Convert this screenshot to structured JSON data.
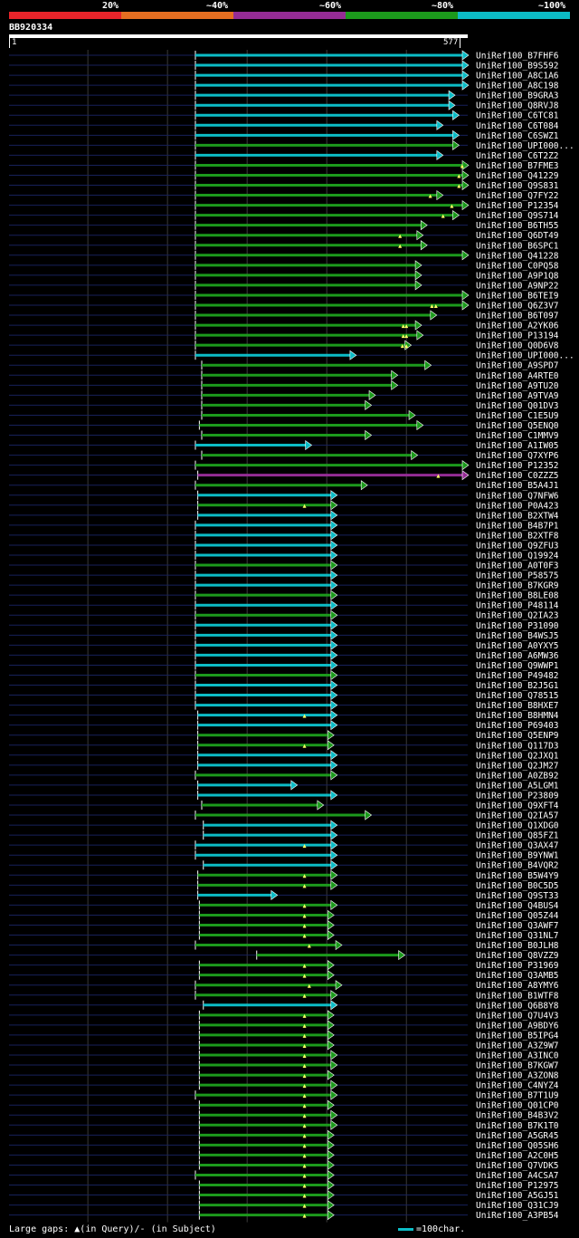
{
  "chart_data": {
    "type": "alignment-overview",
    "query": {
      "name": "BB920334",
      "length": 577,
      "start_label": "1",
      "end_label": "577"
    },
    "scale": [
      {
        "label": "20%",
        "color": "#e8242a"
      },
      {
        "label": "~40%",
        "color": "#e76f21"
      },
      {
        "label": "~60%",
        "color": "#952c95"
      },
      {
        "label": "~80%",
        "color": "#1c9a1c"
      },
      {
        "label": "~100%",
        "color": "#0cbcc6"
      }
    ],
    "identity_colors": {
      "100": "#0cbcc6",
      "80": "#1c9a1c",
      "60": "#952c95"
    },
    "hits": [
      {
        "label": "UniRef100_B7FHF6",
        "start": 235,
        "end": 577,
        "identity": 100,
        "gaps": []
      },
      {
        "label": "UniRef100_B9S592",
        "start": 235,
        "end": 577,
        "identity": 100,
        "gaps": []
      },
      {
        "label": "UniRef100_A8C1A6",
        "start": 235,
        "end": 577,
        "identity": 100,
        "gaps": []
      },
      {
        "label": "UniRef100_A8C198",
        "start": 235,
        "end": 577,
        "identity": 100,
        "gaps": []
      },
      {
        "label": "UniRef100_B9GRA3",
        "start": 235,
        "end": 560,
        "identity": 100,
        "gaps": []
      },
      {
        "label": "UniRef100_Q8RVJ8",
        "start": 235,
        "end": 560,
        "identity": 100,
        "gaps": []
      },
      {
        "label": "UniRef100_C6TC81",
        "start": 235,
        "end": 565,
        "identity": 100,
        "gaps": []
      },
      {
        "label": "UniRef100_C6T084",
        "start": 235,
        "end": 545,
        "identity": 100,
        "gaps": []
      },
      {
        "label": "UniRef100_C6SWZ1",
        "start": 235,
        "end": 565,
        "identity": 100,
        "gaps": []
      },
      {
        "label": "UniRef100_UPI000...",
        "start": 235,
        "end": 565,
        "identity": 80,
        "gaps": []
      },
      {
        "label": "UniRef100_C6T2Z2",
        "start": 235,
        "end": 545,
        "identity": 100,
        "gaps": []
      },
      {
        "label": "UniRef100_B7FME3",
        "start": 235,
        "end": 577,
        "identity": 80,
        "gaps": [
          570
        ]
      },
      {
        "label": "UniRef100_Q41229",
        "start": 235,
        "end": 577,
        "identity": 80,
        "gaps": [
          566
        ]
      },
      {
        "label": "UniRef100_Q9S831",
        "start": 235,
        "end": 577,
        "identity": 80,
        "gaps": [
          566
        ]
      },
      {
        "label": "UniRef100_Q7FY22",
        "start": 235,
        "end": 545,
        "identity": 80,
        "gaps": [
          530
        ]
      },
      {
        "label": "UniRef100_P12354",
        "start": 235,
        "end": 577,
        "identity": 80,
        "gaps": [
          557
        ]
      },
      {
        "label": "UniRef100_Q9S714",
        "start": 235,
        "end": 565,
        "identity": 80,
        "gaps": [
          546
        ]
      },
      {
        "label": "UniRef100_B6TH55",
        "start": 235,
        "end": 525,
        "identity": 80,
        "gaps": []
      },
      {
        "label": "UniRef100_Q6DT49",
        "start": 235,
        "end": 520,
        "identity": 80,
        "gaps": [
          492
        ]
      },
      {
        "label": "UniRef100_B6SPC1",
        "start": 235,
        "end": 525,
        "identity": 80,
        "gaps": [
          492
        ]
      },
      {
        "label": "UniRef100_Q41228",
        "start": 235,
        "end": 577,
        "identity": 80,
        "gaps": []
      },
      {
        "label": "UniRef100_C0PQ58",
        "start": 235,
        "end": 518,
        "identity": 80,
        "gaps": []
      },
      {
        "label": "UniRef100_A9P1Q8",
        "start": 235,
        "end": 518,
        "identity": 80,
        "gaps": []
      },
      {
        "label": "UniRef100_A9NP22",
        "start": 235,
        "end": 518,
        "identity": 80,
        "gaps": []
      },
      {
        "label": "UniRef100_B6TEI9",
        "start": 235,
        "end": 577,
        "identity": 80,
        "gaps": []
      },
      {
        "label": "UniRef100_Q6Z3V7",
        "start": 235,
        "end": 577,
        "identity": 80,
        "gaps": [
          532,
          537
        ]
      },
      {
        "label": "UniRef100_B6T097",
        "start": 235,
        "end": 537,
        "identity": 80,
        "gaps": []
      },
      {
        "label": "UniRef100_A2YK06",
        "start": 235,
        "end": 518,
        "identity": 80,
        "gaps": [
          496,
          500
        ]
      },
      {
        "label": "UniRef100_P13194",
        "start": 235,
        "end": 520,
        "identity": 80,
        "gaps": [
          496,
          500
        ]
      },
      {
        "label": "UniRef100_Q0D6V8",
        "start": 235,
        "end": 505,
        "identity": 80,
        "gaps": [
          495,
          500
        ]
      },
      {
        "label": "UniRef100_UPI000...",
        "start": 235,
        "end": 436,
        "identity": 100,
        "gaps": []
      },
      {
        "label": "UniRef100_A9SPD7",
        "start": 243,
        "end": 530,
        "identity": 80,
        "gaps": []
      },
      {
        "label": "UniRef100_A4RTE0",
        "start": 243,
        "end": 488,
        "identity": 80,
        "gaps": []
      },
      {
        "label": "UniRef100_A9TU20",
        "start": 243,
        "end": 488,
        "identity": 80,
        "gaps": []
      },
      {
        "label": "UniRef100_A9TVA9",
        "start": 243,
        "end": 460,
        "identity": 80,
        "gaps": []
      },
      {
        "label": "UniRef100_Q01DV3",
        "start": 243,
        "end": 455,
        "identity": 80,
        "gaps": []
      },
      {
        "label": "UniRef100_C1E5U9",
        "start": 243,
        "end": 510,
        "identity": 80,
        "gaps": []
      },
      {
        "label": "UniRef100_Q5ENQ0",
        "start": 240,
        "end": 520,
        "identity": 80,
        "gaps": []
      },
      {
        "label": "UniRef100_C1MMV9",
        "start": 243,
        "end": 455,
        "identity": 80,
        "gaps": []
      },
      {
        "label": "UniRef100_A1IW05",
        "start": 235,
        "end": 380,
        "identity": 100,
        "gaps": []
      },
      {
        "label": "UniRef100_Q7XYP6",
        "start": 243,
        "end": 513,
        "identity": 80,
        "gaps": []
      },
      {
        "label": "UniRef100_P12352",
        "start": 235,
        "end": 577,
        "identity": 80,
        "gaps": []
      },
      {
        "label": "UniRef100_C0ZZZ5",
        "start": 238,
        "end": 577,
        "identity": 60,
        "gaps": [
          540
        ]
      },
      {
        "label": "UniRef100_B5A4J1",
        "start": 235,
        "end": 450,
        "identity": 80,
        "gaps": []
      },
      {
        "label": "UniRef100_Q7NFW6",
        "start": 238,
        "end": 412,
        "identity": 100,
        "gaps": []
      },
      {
        "label": "UniRef100_P0A423",
        "start": 238,
        "end": 412,
        "identity": 80,
        "gaps": [
          372
        ]
      },
      {
        "label": "UniRef100_B2XTW4",
        "start": 238,
        "end": 412,
        "identity": 100,
        "gaps": []
      },
      {
        "label": "UniRef100_B4B7P1",
        "start": 235,
        "end": 412,
        "identity": 100,
        "gaps": []
      },
      {
        "label": "UniRef100_B2XTF8",
        "start": 235,
        "end": 412,
        "identity": 100,
        "gaps": []
      },
      {
        "label": "UniRef100_Q9ZFU3",
        "start": 235,
        "end": 412,
        "identity": 100,
        "gaps": []
      },
      {
        "label": "UniRef100_Q19924",
        "start": 235,
        "end": 412,
        "identity": 100,
        "gaps": []
      },
      {
        "label": "UniRef100_A0T0F3",
        "start": 235,
        "end": 412,
        "identity": 80,
        "gaps": []
      },
      {
        "label": "UniRef100_P58575",
        "start": 235,
        "end": 412,
        "identity": 100,
        "gaps": []
      },
      {
        "label": "UniRef100_B7KGR9",
        "start": 235,
        "end": 412,
        "identity": 100,
        "gaps": []
      },
      {
        "label": "UniRef100_B8LE08",
        "start": 235,
        "end": 412,
        "identity": 80,
        "gaps": []
      },
      {
        "label": "UniRef100_P48114",
        "start": 235,
        "end": 412,
        "identity": 100,
        "gaps": []
      },
      {
        "label": "UniRef100_Q2IA23",
        "start": 235,
        "end": 412,
        "identity": 80,
        "gaps": []
      },
      {
        "label": "UniRef100_P31090",
        "start": 235,
        "end": 412,
        "identity": 100,
        "gaps": []
      },
      {
        "label": "UniRef100_B4WSJ5",
        "start": 235,
        "end": 412,
        "identity": 100,
        "gaps": []
      },
      {
        "label": "UniRef100_A0YXY5",
        "start": 235,
        "end": 412,
        "identity": 100,
        "gaps": []
      },
      {
        "label": "UniRef100_A6MW36",
        "start": 235,
        "end": 412,
        "identity": 100,
        "gaps": []
      },
      {
        "label": "UniRef100_Q9WWP1",
        "start": 235,
        "end": 412,
        "identity": 100,
        "gaps": []
      },
      {
        "label": "UniRef100_P49482",
        "start": 235,
        "end": 412,
        "identity": 80,
        "gaps": []
      },
      {
        "label": "UniRef100_B2J5G1",
        "start": 235,
        "end": 412,
        "identity": 100,
        "gaps": []
      },
      {
        "label": "UniRef100_Q78515",
        "start": 235,
        "end": 412,
        "identity": 100,
        "gaps": []
      },
      {
        "label": "UniRef100_B8HXE7",
        "start": 235,
        "end": 412,
        "identity": 100,
        "gaps": []
      },
      {
        "label": "UniRef100_B8HMN4",
        "start": 238,
        "end": 412,
        "identity": 100,
        "gaps": [
          372
        ]
      },
      {
        "label": "UniRef100_P69403",
        "start": 238,
        "end": 412,
        "identity": 100,
        "gaps": []
      },
      {
        "label": "UniRef100_Q5ENP9",
        "start": 238,
        "end": 408,
        "identity": 80,
        "gaps": []
      },
      {
        "label": "UniRef100_Q117D3",
        "start": 238,
        "end": 408,
        "identity": 80,
        "gaps": [
          372
        ]
      },
      {
        "label": "UniRef100_Q2JXQ1",
        "start": 238,
        "end": 412,
        "identity": 100,
        "gaps": []
      },
      {
        "label": "UniRef100_Q2JM27",
        "start": 238,
        "end": 412,
        "identity": 100,
        "gaps": []
      },
      {
        "label": "UniRef100_A0ZB92",
        "start": 235,
        "end": 412,
        "identity": 80,
        "gaps": []
      },
      {
        "label": "UniRef100_A5LGM1",
        "start": 238,
        "end": 362,
        "identity": 100,
        "gaps": []
      },
      {
        "label": "UniRef100_P23809",
        "start": 238,
        "end": 412,
        "identity": 100,
        "gaps": []
      },
      {
        "label": "UniRef100_Q9XFT4",
        "start": 243,
        "end": 395,
        "identity": 80,
        "gaps": []
      },
      {
        "label": "UniRef100_Q2IA57",
        "start": 235,
        "end": 455,
        "identity": 80,
        "gaps": []
      },
      {
        "label": "UniRef100_Q1XDG0",
        "start": 245,
        "end": 412,
        "identity": 100,
        "gaps": []
      },
      {
        "label": "UniRef100_Q85FZ1",
        "start": 245,
        "end": 412,
        "identity": 100,
        "gaps": []
      },
      {
        "label": "UniRef100_Q3AX47",
        "start": 235,
        "end": 412,
        "identity": 100,
        "gaps": [
          372
        ]
      },
      {
        "label": "UniRef100_B9YNW1",
        "start": 235,
        "end": 412,
        "identity": 100,
        "gaps": []
      },
      {
        "label": "UniRef100_B4VQR2",
        "start": 245,
        "end": 412,
        "identity": 100,
        "gaps": []
      },
      {
        "label": "UniRef100_B5W4Y9",
        "start": 238,
        "end": 412,
        "identity": 80,
        "gaps": [
          372
        ]
      },
      {
        "label": "UniRef100_B0C5D5",
        "start": 238,
        "end": 412,
        "identity": 80,
        "gaps": [
          372
        ]
      },
      {
        "label": "UniRef100_Q9ST33",
        "start": 238,
        "end": 337,
        "identity": 100,
        "gaps": []
      },
      {
        "label": "UniRef100_Q4BUS4",
        "start": 240,
        "end": 412,
        "identity": 80,
        "gaps": [
          372
        ]
      },
      {
        "label": "UniRef100_Q05Z44",
        "start": 240,
        "end": 408,
        "identity": 80,
        "gaps": [
          372
        ]
      },
      {
        "label": "UniRef100_Q3AWF7",
        "start": 240,
        "end": 408,
        "identity": 80,
        "gaps": [
          372
        ]
      },
      {
        "label": "UniRef100_Q31NL7",
        "start": 240,
        "end": 408,
        "identity": 80,
        "gaps": [
          372
        ]
      },
      {
        "label": "UniRef100_B0JLH8",
        "start": 235,
        "end": 418,
        "identity": 80,
        "gaps": [
          378
        ]
      },
      {
        "label": "UniRef100_Q8VZZ9",
        "start": 312,
        "end": 497,
        "identity": 80,
        "gaps": []
      },
      {
        "label": "UniRef100_P31969",
        "start": 240,
        "end": 408,
        "identity": 80,
        "gaps": [
          372
        ]
      },
      {
        "label": "UniRef100_Q3AMB5",
        "start": 240,
        "end": 408,
        "identity": 80,
        "gaps": [
          372
        ]
      },
      {
        "label": "UniRef100_A8YMY6",
        "start": 235,
        "end": 418,
        "identity": 80,
        "gaps": [
          378
        ]
      },
      {
        "label": "UniRef100_B1WTF8",
        "start": 235,
        "end": 412,
        "identity": 80,
        "gaps": [
          372
        ]
      },
      {
        "label": "UniRef100_Q6B8Y8",
        "start": 245,
        "end": 412,
        "identity": 100,
        "gaps": []
      },
      {
        "label": "UniRef100_Q7U4V3",
        "start": 240,
        "end": 408,
        "identity": 80,
        "gaps": [
          372
        ]
      },
      {
        "label": "UniRef100_A9BDY6",
        "start": 240,
        "end": 408,
        "identity": 80,
        "gaps": [
          372
        ]
      },
      {
        "label": "UniRef100_B5IPG4",
        "start": 240,
        "end": 408,
        "identity": 80,
        "gaps": [
          372
        ]
      },
      {
        "label": "UniRef100_A3Z9W7",
        "start": 240,
        "end": 408,
        "identity": 80,
        "gaps": [
          372
        ]
      },
      {
        "label": "UniRef100_A3INC0",
        "start": 240,
        "end": 412,
        "identity": 80,
        "gaps": [
          372
        ]
      },
      {
        "label": "UniRef100_B7KGW7",
        "start": 240,
        "end": 412,
        "identity": 80,
        "gaps": [
          372
        ]
      },
      {
        "label": "UniRef100_A3ZON8",
        "start": 240,
        "end": 408,
        "identity": 80,
        "gaps": [
          372
        ]
      },
      {
        "label": "UniRef100_C4NYZ4",
        "start": 240,
        "end": 412,
        "identity": 80,
        "gaps": [
          372
        ]
      },
      {
        "label": "UniRef100_B7T1U9",
        "start": 235,
        "end": 412,
        "identity": 80,
        "gaps": [
          372
        ]
      },
      {
        "label": "UniRef100_Q01CP0",
        "start": 240,
        "end": 408,
        "identity": 80,
        "gaps": [
          372
        ]
      },
      {
        "label": "UniRef100_B4B3V2",
        "start": 240,
        "end": 412,
        "identity": 80,
        "gaps": [
          372
        ]
      },
      {
        "label": "UniRef100_B7K1T0",
        "start": 240,
        "end": 412,
        "identity": 80,
        "gaps": [
          372
        ]
      },
      {
        "label": "UniRef100_A5GR45",
        "start": 240,
        "end": 408,
        "identity": 80,
        "gaps": [
          372
        ]
      },
      {
        "label": "UniRef100_Q05SH6",
        "start": 240,
        "end": 408,
        "identity": 80,
        "gaps": [
          372
        ]
      },
      {
        "label": "UniRef100_A2C0H5",
        "start": 240,
        "end": 408,
        "identity": 80,
        "gaps": [
          372
        ]
      },
      {
        "label": "UniRef100_Q7VDK5",
        "start": 240,
        "end": 408,
        "identity": 80,
        "gaps": [
          372
        ]
      },
      {
        "label": "UniRef100_A4CSA7",
        "start": 235,
        "end": 408,
        "identity": 80,
        "gaps": [
          372
        ]
      },
      {
        "label": "UniRef100_P12975",
        "start": 240,
        "end": 408,
        "identity": 80,
        "gaps": [
          372
        ]
      },
      {
        "label": "UniRef100_A5GJ51",
        "start": 240,
        "end": 408,
        "identity": 80,
        "gaps": [
          372
        ]
      },
      {
        "label": "UniRef100_Q31CJ9",
        "start": 240,
        "end": 408,
        "identity": 80,
        "gaps": [
          372
        ]
      },
      {
        "label": "UniRef100_A3PB54",
        "start": 240,
        "end": 408,
        "identity": 80,
        "gaps": [
          372
        ]
      }
    ]
  },
  "legend": {
    "large_gaps_text": "Large gaps:",
    "query_gap_text": "(in Query)/-",
    "subject_gap_text": "(in Subject)",
    "scale_text": "=100char."
  }
}
